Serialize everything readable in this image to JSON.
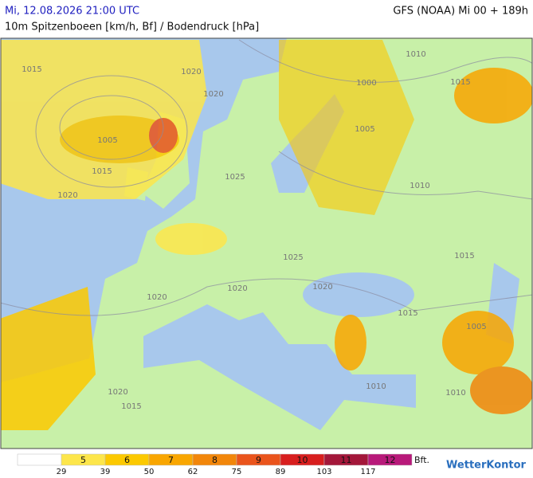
{
  "header": {
    "date": "Mi, 12.08.2026 21:00 UTC",
    "model": "GFS (NOAA) Mi 00 + 189h",
    "subtitle": "10m Spitzenboeen [km/h, Bf] / Bodendruck [hPa]"
  },
  "isobar_labels": [
    1015,
    1020,
    1020,
    1005,
    1015,
    1020,
    1025,
    1010,
    1015,
    1000,
    1005,
    1010,
    1015,
    1020,
    1020,
    1020,
    1025,
    1015,
    1005,
    1010,
    1010,
    1020,
    1015
  ],
  "legend": {
    "colors": [
      "#ffffff",
      "#fde64b",
      "#fcc900",
      "#f9a600",
      "#f2860a",
      "#ea541c",
      "#d81e1e",
      "#a3173a",
      "#b8197a"
    ],
    "bft": [
      5,
      6,
      7,
      8,
      9,
      10,
      11,
      12
    ],
    "kmh": [
      29,
      39,
      50,
      62,
      75,
      89,
      103,
      117
    ],
    "unit": "Bft."
  },
  "logo": "WetterKontor"
}
